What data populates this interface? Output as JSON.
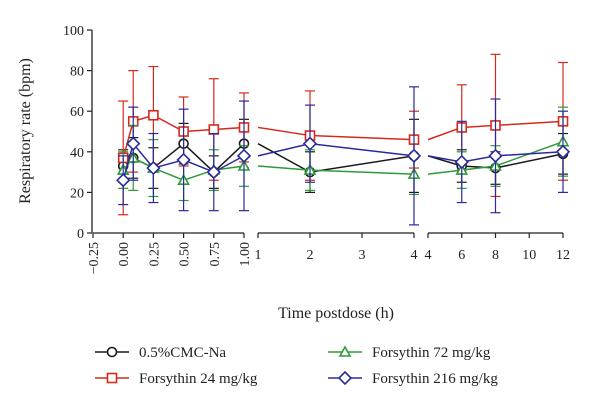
{
  "chart_data": {
    "type": "line",
    "title": "",
    "xlabel": "Time postdose (h)",
    "ylabel": "Respiratory rate (bpm)",
    "ylim": [
      0,
      100
    ],
    "yticks": [
      "0",
      "20",
      "40",
      "60",
      "80",
      "100"
    ],
    "panels": [
      {
        "xlim": [
          -0.25,
          1.0
        ],
        "xticks": [
          "−0.25",
          "0.00",
          "0.25",
          "0.50",
          "0.75",
          "1.00"
        ],
        "tick_values": [
          -0.25,
          0,
          0.25,
          0.5,
          0.75,
          1.0
        ],
        "tick_rotated": true
      },
      {
        "xlim": [
          1,
          4
        ],
        "xticks": [
          "1",
          "2",
          "3",
          "4"
        ],
        "tick_values": [
          1,
          2,
          3,
          4
        ],
        "tick_rotated": false
      },
      {
        "xlim": [
          4,
          12
        ],
        "xticks": [
          "4",
          "6",
          "8",
          "10",
          "12"
        ],
        "tick_values": [
          4,
          6,
          8,
          10,
          12
        ],
        "tick_rotated": false
      }
    ],
    "grid": false,
    "legend_position": "bottom",
    "series": [
      {
        "name": "0.5%CMC-Na",
        "color": "#1a1a1a",
        "marker": "circle",
        "x": [
          0,
          0.083,
          0.25,
          0.5,
          0.75,
          1.0,
          2,
          4,
          6,
          8,
          12
        ],
        "y": [
          33,
          37,
          32,
          44,
          30,
          44,
          30,
          38,
          33,
          32,
          39
        ],
        "err": [
          8,
          10,
          10,
          10,
          8,
          12,
          10,
          18,
          8,
          8,
          10
        ]
      },
      {
        "name": "Forsythin 24 mg/kg",
        "color": "#d42a1c",
        "marker": "square",
        "x": [
          0,
          0.083,
          0.25,
          0.5,
          0.75,
          1.0,
          2,
          4,
          6,
          8,
          12
        ],
        "y": [
          37,
          55,
          58,
          50,
          51,
          52,
          48,
          46,
          52,
          53,
          55
        ],
        "err": [
          28,
          25,
          24,
          17,
          25,
          17,
          22,
          14,
          21,
          35,
          29
        ]
      },
      {
        "name": "Forsythin 72 mg/kg",
        "color": "#2f9a3a",
        "marker": "triangle",
        "x": [
          0,
          0.083,
          0.25,
          0.5,
          0.75,
          1.0,
          2,
          4,
          6,
          8,
          12
        ],
        "y": [
          31,
          37,
          32,
          26,
          31,
          33,
          31,
          29,
          31,
          33,
          45
        ],
        "err": [
          9,
          16,
          14,
          10,
          10,
          10,
          10,
          10,
          9,
          10,
          17
        ]
      },
      {
        "name": "Forsythin 216 mg/kg",
        "color": "#2a2a9c",
        "marker": "diamond",
        "x": [
          0,
          0.083,
          0.25,
          0.5,
          0.75,
          1.0,
          2,
          4,
          6,
          8,
          12
        ],
        "y": [
          26,
          44,
          32,
          36,
          30,
          38,
          44,
          38,
          35,
          38,
          40
        ],
        "err": [
          12,
          18,
          17,
          25,
          19,
          27,
          19,
          34,
          20,
          28,
          20
        ]
      }
    ]
  }
}
